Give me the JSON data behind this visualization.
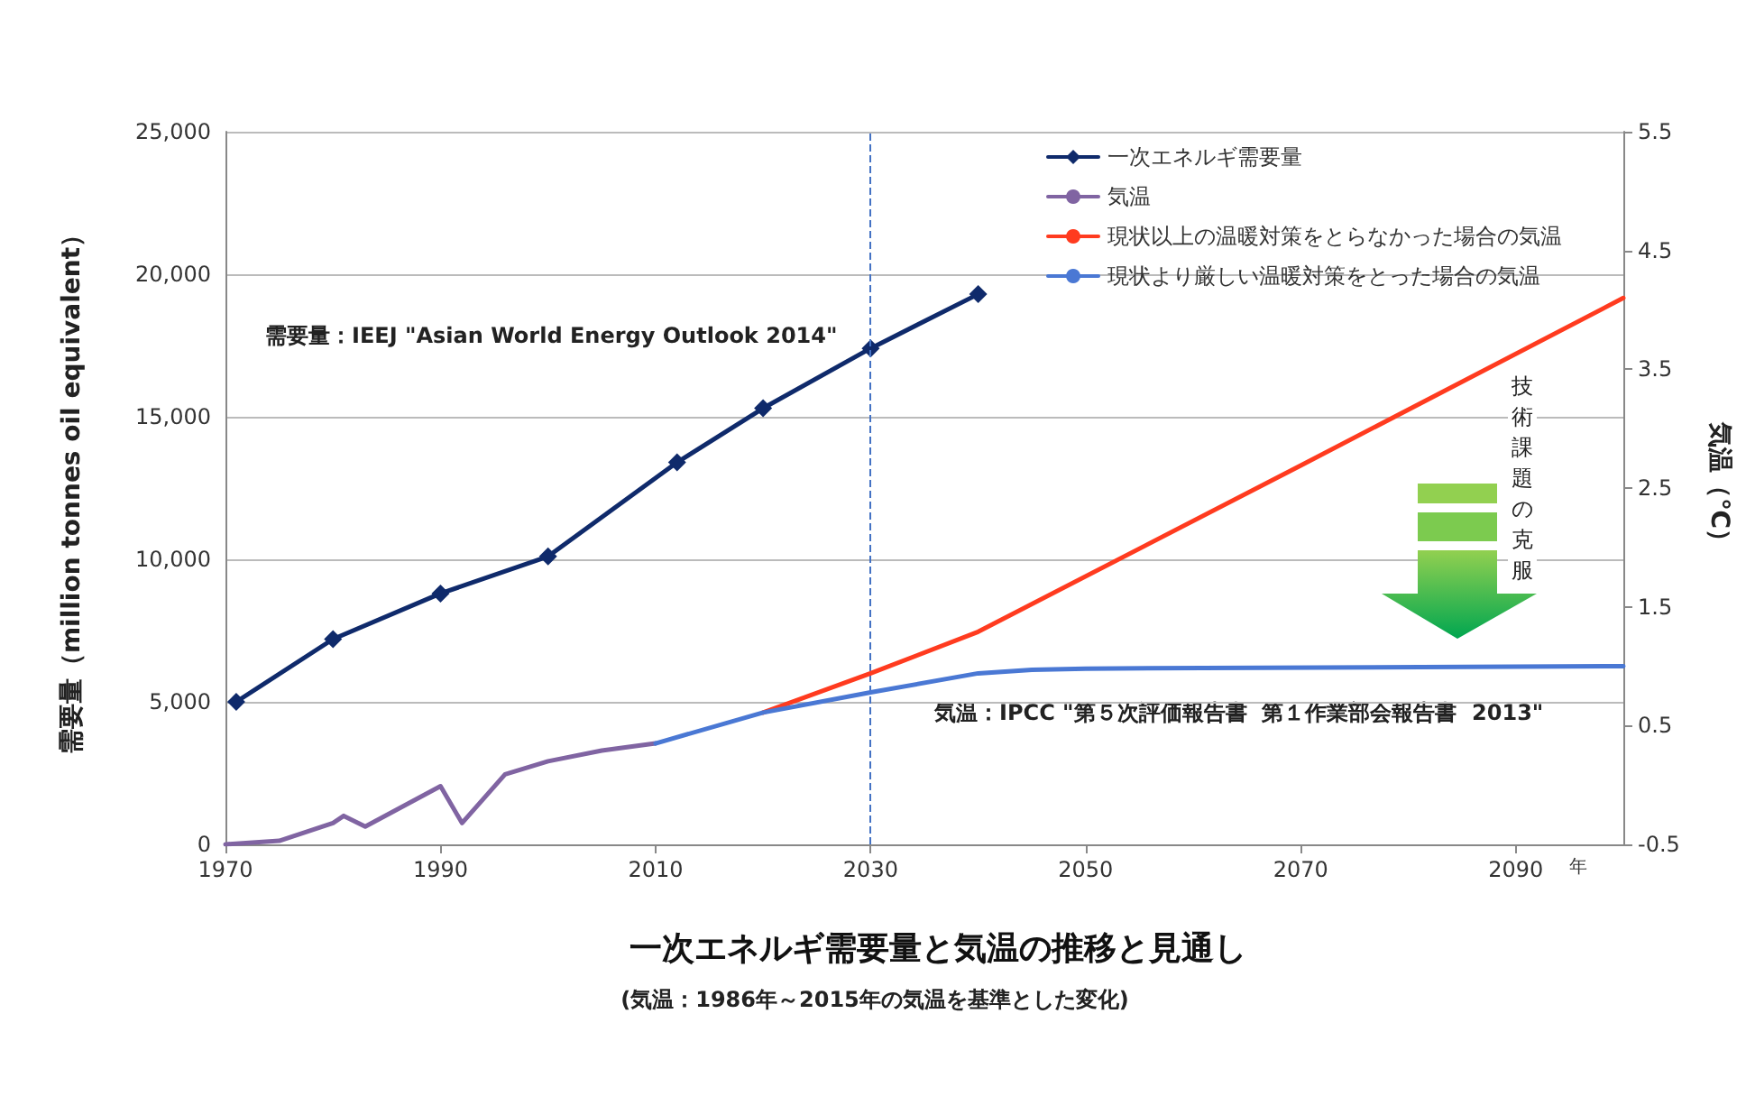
{
  "chart_data": {
    "type": "line",
    "title": "一次エネルギ需要量と気温の推移と見通し",
    "subtitle": "(気温：1986年～2015年の気温を基準とした変化)",
    "xlabel": "年",
    "ylabel": "需要量（million tonnes oil equivalent）",
    "y2label": "気温（℃）",
    "annotations": [
      "需要量：IEEJ \"Asian World Energy Outlook 2014\"",
      "気温：IPCC \"第５次評価報告書  第１作業部会報告書  2013\"",
      "技術課題の克服"
    ],
    "xlim": [
      1970,
      2100
    ],
    "xticks": [
      1970,
      1990,
      2010,
      2030,
      2050,
      2070,
      2090
    ],
    "ylim": [
      0,
      25000
    ],
    "yticks": [
      0,
      {
        "value": 5000,
        "label": "5,000"
      },
      {
        "value": 10000,
        "label": "10,000"
      },
      {
        "value": 15000,
        "label": "15,000"
      },
      {
        "value": 20000,
        "label": "20,000"
      },
      {
        "value": 25000,
        "label": "25,000"
      }
    ],
    "y2lim": [
      -0.5,
      5.5
    ],
    "y2ticks": [
      -0.5,
      0.5,
      1.5,
      2.5,
      3.5,
      4.5,
      5.5
    ],
    "grid": "y",
    "legend": "top right",
    "ref_lines": [
      {
        "axis": "x",
        "value": 2030,
        "color": "#4472c4",
        "line_style": "dashed"
      }
    ],
    "series": [
      {
        "name": "一次エネルギ需要量",
        "color": "#0f2a6b",
        "marker": "diamond",
        "x": [
          1971,
          1980,
          1990,
          2000,
          2012,
          2020,
          2030,
          2040
        ],
        "values": [
          5000,
          7200,
          8800,
          10100,
          13400,
          15300,
          17400,
          19300
        ]
      },
      {
        "name": "気温",
        "color": "#8064a2",
        "axis": "y2",
        "marker": "none",
        "x": [
          1970,
          1975,
          1980,
          1981,
          1983,
          1990,
          1992,
          1996,
          2000,
          2005,
          2010
        ],
        "values": [
          -0.5,
          -0.47,
          -0.32,
          -0.26,
          -0.35,
          -0.01,
          -0.32,
          0.09,
          0.2,
          0.29,
          0.35
        ]
      },
      {
        "name": "現状以上の温暖対策をとらなかった場合の気温",
        "color": "#ff3b1f",
        "axis": "y2",
        "marker": "none",
        "x": [
          2020,
          2030,
          2040,
          2070,
          2100
        ],
        "values": [
          0.61,
          0.94,
          1.29,
          2.69,
          4.1
        ]
      },
      {
        "name": "現状より厳しい温暖対策をとった場合の気温",
        "color": "#4a78d4",
        "axis": "y2",
        "marker": "none",
        "x": [
          2010,
          2020,
          2030,
          2040,
          2045,
          2050,
          2100
        ],
        "values": [
          0.35,
          0.61,
          0.78,
          0.94,
          0.97,
          0.98,
          1.0
        ]
      }
    ]
  }
}
